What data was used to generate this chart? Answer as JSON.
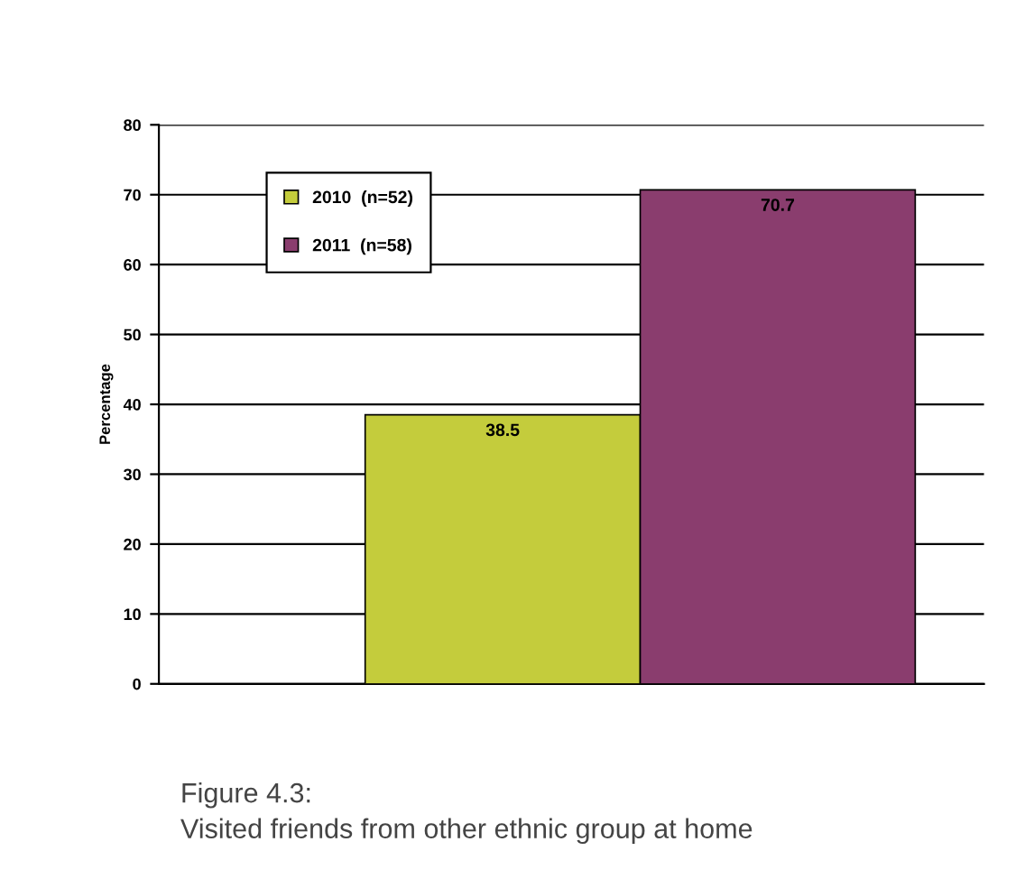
{
  "chart_data": {
    "type": "bar",
    "ylabel": "Percentage",
    "categories": [
      null
    ],
    "series": [
      {
        "name": "2010  (n=52)",
        "color": "#c4cc3c",
        "values": [
          38.5
        ]
      },
      {
        "name": "2011  (n=58)",
        "color": "#8a3d6e",
        "values": [
          70.7
        ]
      }
    ],
    "ylim": [
      0,
      80
    ],
    "yticks": [
      0,
      10,
      20,
      30,
      40,
      50,
      60,
      70,
      80
    ],
    "grid": "y",
    "legend": "top left",
    "data_labels": true,
    "annotations": [
      "Figure 4.3:\nVisited friends from other ethnic group at home"
    ]
  }
}
